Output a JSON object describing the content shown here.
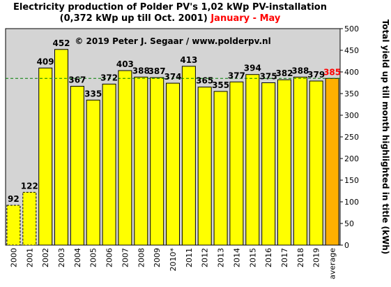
{
  "title": {
    "line1": "Electricity production  of Polder PV's  1,02 kWp PV-installation",
    "line2": "(0,372 kWp up till Oct. 2001)",
    "highlight": "January - May"
  },
  "colors": {
    "plot_background": "#d4d4d4",
    "bar": "#ffff00",
    "bar_average": "#ffb000",
    "average_label": "#ff0000",
    "average_line": "#007f00"
  },
  "chart_data": {
    "type": "bar",
    "copyright": "© 2019 Peter J. Segaar / www.polderpv.nl",
    "categories": [
      "2000",
      "2001",
      "2002",
      "2003",
      "2004",
      "2005",
      "2006",
      "2007",
      "2008",
      "2009",
      "2010*",
      "2011",
      "2012",
      "2013",
      "2014",
      "2015",
      "2016",
      "2017",
      "2018",
      "2019",
      "average"
    ],
    "values": [
      92,
      122,
      409,
      452,
      367,
      335,
      372,
      403,
      388,
      387,
      374,
      413,
      365,
      355,
      377,
      394,
      375,
      382,
      388,
      379,
      385
    ],
    "dashed_categories": [
      "2000",
      "2001"
    ],
    "average_value": 385,
    "ylabel": "Total yield up till month highlighted in title (kWh)",
    "ylim": [
      0,
      500
    ],
    "yticks": [
      0,
      50,
      100,
      150,
      200,
      250,
      300,
      350,
      400,
      450,
      500
    ],
    "y_axis_side": "right",
    "grid": false
  }
}
